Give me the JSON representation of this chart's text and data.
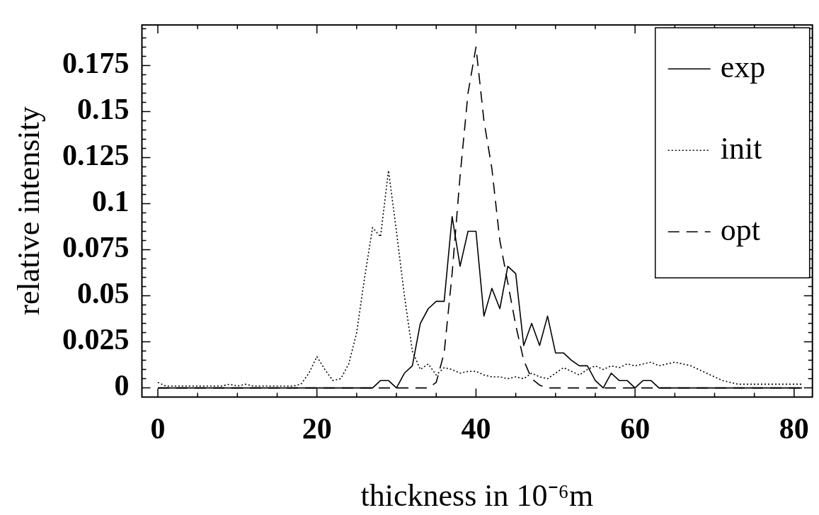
{
  "chart_data": {
    "type": "line",
    "xlabel": "thickness in 10⁻⁶m",
    "ylabel": "relative intensity",
    "x": [
      0,
      1,
      2,
      3,
      4,
      5,
      6,
      7,
      8,
      9,
      10,
      11,
      12,
      13,
      14,
      15,
      16,
      17,
      18,
      19,
      20,
      21,
      22,
      23,
      24,
      25,
      26,
      27,
      28,
      29,
      30,
      31,
      32,
      33,
      34,
      35,
      36,
      37,
      38,
      39,
      40,
      41,
      42,
      43,
      44,
      45,
      46,
      47,
      48,
      49,
      50,
      51,
      52,
      53,
      54,
      55,
      56,
      57,
      58,
      59,
      60,
      61,
      62,
      63,
      64,
      65,
      66,
      67,
      68,
      69,
      70,
      71,
      72,
      73,
      74,
      75,
      76,
      77,
      78,
      79,
      80,
      81
    ],
    "series": [
      {
        "name": "exp",
        "color": "#000000",
        "line_style": "solid",
        "values": [
          0,
          0,
          0,
          0,
          0,
          0,
          0,
          0,
          0,
          0,
          0,
          0,
          0,
          0,
          0,
          0,
          0,
          0,
          0,
          0,
          0,
          0,
          0,
          0,
          0,
          0,
          0,
          0,
          0.004,
          0.004,
          0,
          0.008,
          0.012,
          0.035,
          0.043,
          0.047,
          0.047,
          0.093,
          0.066,
          0.085,
          0.085,
          0.039,
          0.054,
          0.043,
          0.066,
          0.062,
          0.023,
          0.035,
          0.023,
          0.039,
          0.019,
          0.019,
          0.015,
          0.012,
          0.012,
          0.004,
          0,
          0.008,
          0.004,
          0.004,
          0,
          0.004,
          0.004,
          0,
          0,
          0,
          0,
          0,
          0,
          0,
          0,
          0,
          0,
          0,
          0,
          0,
          0,
          0,
          0,
          0,
          0,
          0
        ]
      },
      {
        "name": "init",
        "color": "#000000",
        "line_style": "dotted",
        "values": [
          0.003,
          0.001,
          0.001,
          0.001,
          0.001,
          0.001,
          0.001,
          0.001,
          0.001,
          0.002,
          0.001,
          0.002,
          0.001,
          0.001,
          0.001,
          0.001,
          0.001,
          0.001,
          0.002,
          0.008,
          0.017,
          0.01,
          0.004,
          0.005,
          0.013,
          0.03,
          0.06,
          0.087,
          0.082,
          0.118,
          0.085,
          0.05,
          0.02,
          0.01,
          0.013,
          0.007,
          0.011,
          0.01,
          0.008,
          0.009,
          0.009,
          0.007,
          0.006,
          0.006,
          0.005,
          0.006,
          0.005,
          0.008,
          0.006,
          0.005,
          0.008,
          0.011,
          0.009,
          0.007,
          0.01,
          0.012,
          0.01,
          0.012,
          0.011,
          0.013,
          0.012,
          0.013,
          0.014,
          0.012,
          0.013,
          0.014,
          0.013,
          0.012,
          0.01,
          0.008,
          0.006,
          0.004,
          0.003,
          0.002,
          0.002,
          0.002,
          0.002,
          0.002,
          0.002,
          0.002,
          0.002,
          0.002
        ]
      },
      {
        "name": "opt",
        "color": "#000000",
        "line_style": "dashed",
        "values": [
          0,
          0,
          0,
          0,
          0,
          0,
          0,
          0,
          0,
          0,
          0,
          0,
          0,
          0,
          0,
          0,
          0,
          0,
          0,
          0,
          0,
          0,
          0,
          0,
          0,
          0,
          0,
          0,
          0,
          0,
          0,
          0,
          0,
          0,
          0,
          0.003,
          0.019,
          0.062,
          0.115,
          0.16,
          0.185,
          0.145,
          0.119,
          0.08,
          0.057,
          0.034,
          0.015,
          0.005,
          0.0015,
          0,
          0,
          0,
          0,
          0,
          0,
          0,
          0,
          0,
          0,
          0,
          0,
          0,
          0,
          0,
          0,
          0,
          0,
          0,
          0,
          0,
          0,
          0,
          0,
          0,
          0,
          0,
          0,
          0,
          0,
          0,
          0,
          0
        ]
      }
    ],
    "xlim": [
      -2,
      82.3
    ],
    "ylim": [
      -0.005,
      0.197
    ],
    "xticks": [
      0,
      {
        "value": 5,
        "label": null
      },
      {
        "value": 10,
        "label": null
      },
      {
        "value": 15,
        "label": null
      },
      20,
      {
        "value": 25,
        "label": null
      },
      {
        "value": 30,
        "label": null
      },
      {
        "value": 35,
        "label": null
      },
      40,
      {
        "value": 45,
        "label": null
      },
      {
        "value": 50,
        "label": null
      },
      {
        "value": 55,
        "label": null
      },
      60,
      {
        "value": 65,
        "label": null
      },
      {
        "value": 70,
        "label": null
      },
      {
        "value": 75,
        "label": null
      },
      80
    ],
    "yticks": [
      0,
      {
        "value": 0.005,
        "label": null
      },
      {
        "value": 0.01,
        "label": null
      },
      {
        "value": 0.015,
        "label": null
      },
      {
        "value": 0.02,
        "label": null
      },
      0.025,
      {
        "value": 0.03,
        "label": null
      },
      {
        "value": 0.035,
        "label": null
      },
      {
        "value": 0.04,
        "label": null
      },
      {
        "value": 0.045,
        "label": null
      },
      0.05,
      {
        "value": 0.055,
        "label": null
      },
      {
        "value": 0.06,
        "label": null
      },
      {
        "value": 0.065,
        "label": null
      },
      {
        "value": 0.07,
        "label": null
      },
      0.075,
      {
        "value": 0.08,
        "label": null
      },
      {
        "value": 0.085,
        "label": null
      },
      {
        "value": 0.09,
        "label": null
      },
      {
        "value": 0.095,
        "label": null
      },
      0.1,
      {
        "value": 0.105,
        "label": null
      },
      {
        "value": 0.11,
        "label": null
      },
      {
        "value": 0.115,
        "label": null
      },
      {
        "value": 0.12,
        "label": null
      },
      0.125,
      {
        "value": 0.13,
        "label": null
      },
      {
        "value": 0.135,
        "label": null
      },
      {
        "value": 0.14,
        "label": null
      },
      {
        "value": 0.145,
        "label": null
      },
      0.15,
      {
        "value": 0.155,
        "label": null
      },
      {
        "value": 0.16,
        "label": null
      },
      {
        "value": 0.165,
        "label": null
      },
      {
        "value": 0.17,
        "label": null
      },
      0.175,
      {
        "value": 0.18,
        "label": null
      },
      {
        "value": 0.185,
        "label": null
      },
      {
        "value": 0.19,
        "label": null
      },
      {
        "value": 0.195,
        "label": null
      }
    ],
    "grid": false,
    "legend": "top right",
    "marker": "none"
  }
}
